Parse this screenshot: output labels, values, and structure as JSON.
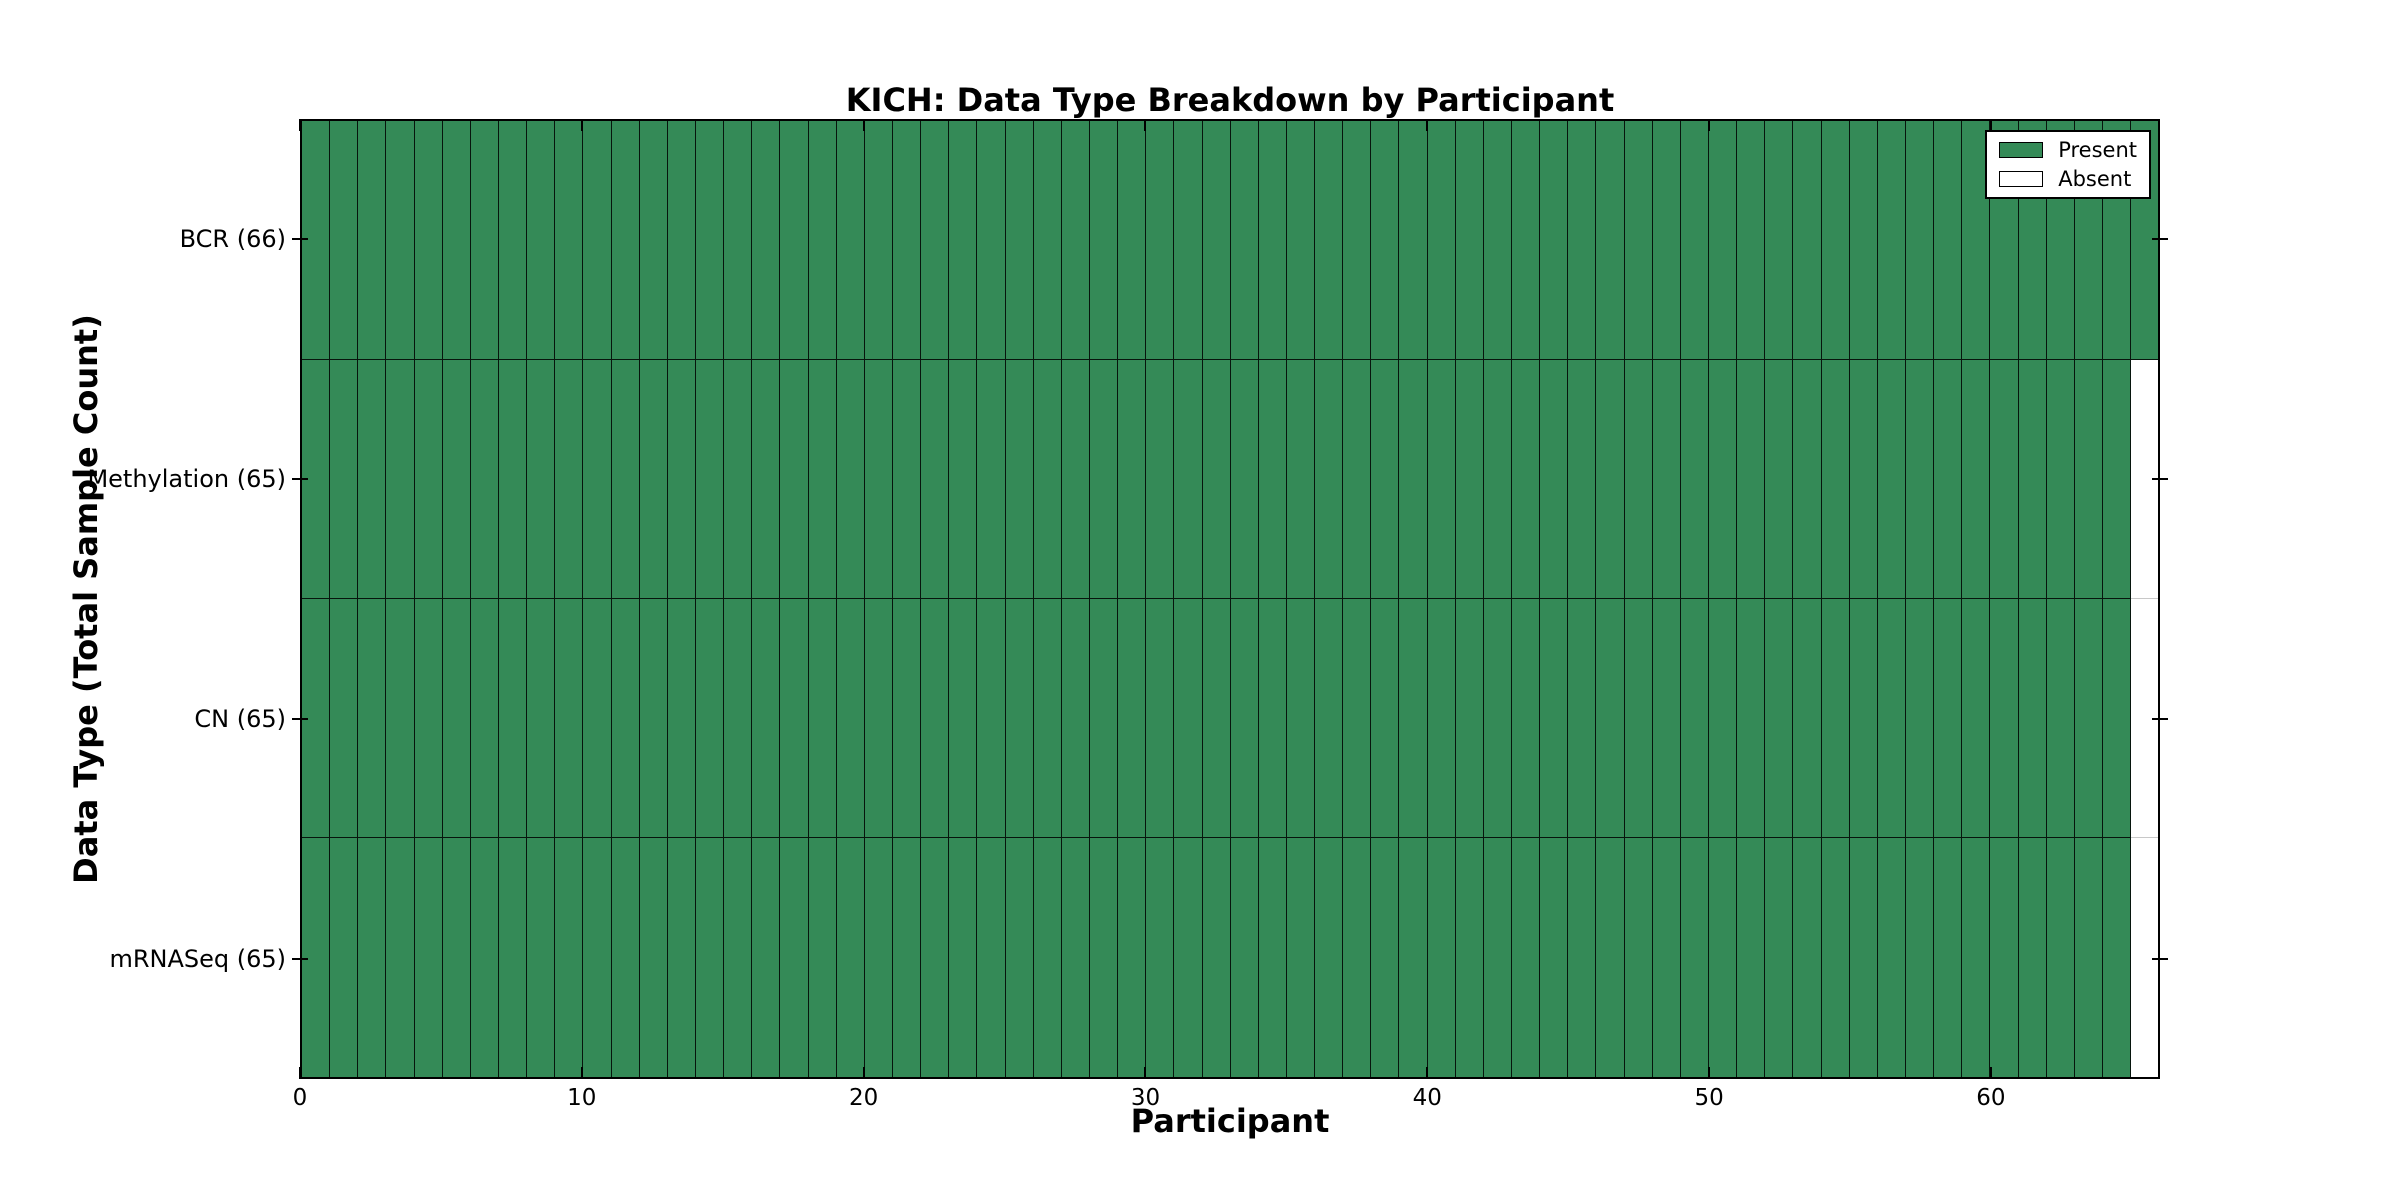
{
  "title": "KICH: Data Type Breakdown by Participant",
  "xlabel": "Participant",
  "ylabel": "Data Type (Total Sample Count)",
  "legend": {
    "present_label": "Present",
    "absent_label": "Absent"
  },
  "colors": {
    "present": "#348a57",
    "absent": "#ffffff",
    "frame": "#000000"
  },
  "chart_data": {
    "type": "heatmap",
    "title": "KICH: Data Type Breakdown by Participant",
    "xlabel": "Participant",
    "ylabel": "Data Type (Total Sample Count)",
    "cohort": "KICH",
    "n_participants": 66,
    "x_axis": {
      "range": [
        0,
        66
      ],
      "ticks": [
        0,
        10,
        20,
        30,
        40,
        50,
        60
      ]
    },
    "rows": [
      {
        "label": "BCR (66)",
        "data_type": "BCR",
        "total_sample_count": 66,
        "present_count": 66,
        "absent_participants": []
      },
      {
        "label": "Methylation (65)",
        "data_type": "Methylation",
        "total_sample_count": 65,
        "present_count": 65,
        "absent_participants": [
          65
        ]
      },
      {
        "label": "CN (65)",
        "data_type": "CN",
        "total_sample_count": 65,
        "present_count": 65,
        "absent_participants": [
          65
        ]
      },
      {
        "label": "mRNASeq (65)",
        "data_type": "mRNASeq",
        "total_sample_count": 65,
        "present_count": 65,
        "absent_participants": [
          65
        ]
      }
    ],
    "legend_entries": [
      {
        "label": "Present",
        "color": "#348a57"
      },
      {
        "label": "Absent",
        "color": "#ffffff"
      }
    ],
    "legend_position": "upper right",
    "grid": "cell-borders"
  }
}
